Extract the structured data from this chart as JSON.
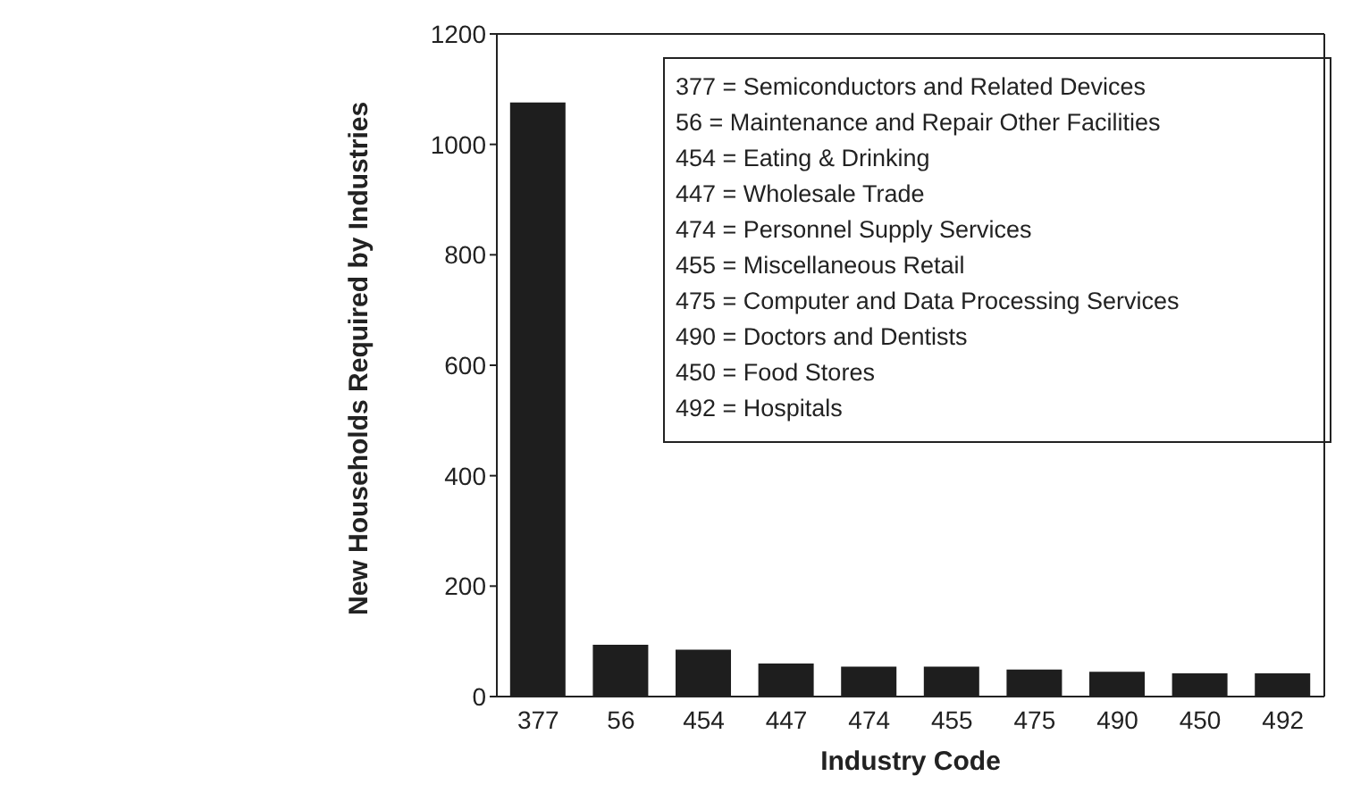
{
  "chart_data": {
    "type": "bar",
    "xlabel": "Industry Code",
    "ylabel": "New Households Required by Industries",
    "categories": [
      "377",
      "56",
      "454",
      "447",
      "474",
      "455",
      "475",
      "490",
      "450",
      "492"
    ],
    "values": [
      1076,
      94,
      85,
      60,
      54,
      54,
      49,
      45,
      42,
      42
    ],
    "color": "#1e1e1e",
    "ylim": [
      0,
      1200
    ],
    "yticks": [
      0,
      200,
      400,
      600,
      800,
      1000,
      1200
    ],
    "grid": false,
    "annotations": [
      "377 = Semiconductors and Related Devices",
      "56 = Maintenance and Repair Other Facilities",
      "454 = Eating & Drinking",
      "447 = Wholesale Trade",
      "474 = Personnel Supply Services",
      "455 = Miscellaneous Retail",
      "475 = Computer and Data Processing Services",
      "490 = Doctors and Dentists",
      "450 = Food Stores",
      "492 = Hospitals"
    ]
  }
}
